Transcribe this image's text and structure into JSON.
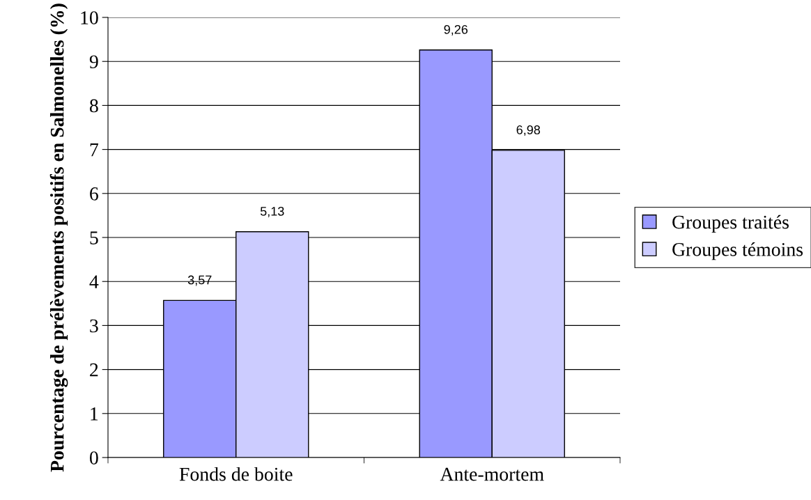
{
  "chart_data": {
    "type": "bar",
    "ylabel": "Pourcentage de prélèvements positifs en Salmonelles (%)",
    "categories": [
      "Fonds de boite",
      "Ante-mortem"
    ],
    "series": [
      {
        "name": "Groupes traités",
        "color": "#9999ff",
        "values": [
          3.57,
          9.26
        ],
        "value_labels": [
          "3,57",
          "9,26"
        ]
      },
      {
        "name": "Groupes témoins",
        "color": "#ccccff",
        "values": [
          5.13,
          6.98
        ],
        "value_labels": [
          "5,13",
          "6,98"
        ]
      }
    ],
    "ylim": [
      0,
      10
    ],
    "yticks": [
      0,
      1,
      2,
      3,
      4,
      5,
      6,
      7,
      8,
      9,
      10
    ],
    "grid": "y",
    "legend": "right"
  }
}
